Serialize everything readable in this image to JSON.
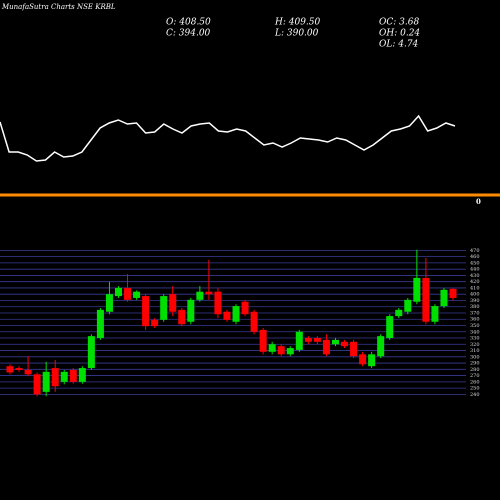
{
  "chart_data": [
    {
      "type": "line",
      "title": "MunafaSutra Charts NSE KRBL",
      "stats": [
        "O: 408.50",
        "H: 409.50",
        "OC: 3.68",
        "C: 394.00",
        "L: 390.00",
        "OH: 0.24",
        "OL: 4.74"
      ],
      "color": "#ffffff",
      "values": [
        78,
        48,
        48,
        45,
        39,
        40,
        48,
        43,
        44,
        48,
        60,
        72,
        77,
        80,
        76,
        77,
        67,
        68,
        76,
        71,
        67,
        74,
        76,
        77,
        69,
        68,
        71,
        69,
        62,
        55,
        57,
        53,
        57,
        62,
        61,
        60,
        58,
        62,
        60,
        55,
        50,
        55,
        62,
        69,
        71,
        74,
        84,
        69,
        72,
        77,
        74
      ],
      "ylim": [
        30,
        100
      ],
      "marker_label": "0"
    },
    {
      "type": "candlestick",
      "up_color": "#00e000",
      "down_color": "#ff0000",
      "open": [
        285,
        282,
        279,
        272,
        244,
        282,
        260,
        279,
        260,
        282,
        330,
        372,
        397,
        410,
        394,
        397,
        359,
        359,
        400,
        375,
        356,
        391,
        404,
        404,
        372,
        356,
        388,
        372,
        343,
        308,
        317,
        304,
        311,
        330,
        330,
        327,
        320,
        324,
        324,
        304,
        285,
        301,
        330,
        365,
        372,
        388,
        426,
        356,
        381,
        408.5
      ],
      "high": [
        288,
        285,
        301,
        275,
        292,
        295,
        279,
        282,
        285,
        336,
        378,
        420,
        413,
        432,
        406,
        400,
        362,
        400,
        413,
        378,
        394,
        413,
        455,
        410,
        375,
        384,
        391,
        375,
        346,
        324,
        320,
        317,
        343,
        333,
        333,
        336,
        330,
        327,
        327,
        308,
        308,
        336,
        368,
        378,
        394,
        471,
        458,
        384,
        410,
        409.5
      ],
      "low": [
        272,
        276,
        269,
        237,
        237,
        244,
        256,
        257,
        257,
        279,
        327,
        368,
        394,
        388,
        391,
        343,
        346,
        356,
        365,
        349,
        352,
        388,
        391,
        362,
        356,
        352,
        365,
        336,
        304,
        304,
        301,
        301,
        308,
        320,
        320,
        301,
        317,
        314,
        298,
        285,
        282,
        298,
        327,
        362,
        368,
        384,
        352,
        352,
        378,
        390
      ],
      "close": [
        275,
        279,
        272,
        240,
        276,
        253,
        276,
        260,
        282,
        333,
        375,
        400,
        410,
        391,
        404,
        349,
        349,
        397,
        372,
        352,
        391,
        404,
        400,
        368,
        359,
        381,
        368,
        340,
        308,
        320,
        304,
        314,
        340,
        324,
        324,
        304,
        327,
        317,
        301,
        288,
        304,
        333,
        365,
        375,
        391,
        426,
        356,
        381,
        407,
        394
      ],
      "ylim": [
        231,
        477
      ],
      "yticks": [
        240,
        250,
        260,
        270,
        280,
        290,
        300,
        310,
        320,
        330,
        340,
        350,
        360,
        370,
        380,
        390,
        400,
        410,
        420,
        430,
        440,
        450,
        460,
        470
      ],
      "grid": true
    }
  ]
}
